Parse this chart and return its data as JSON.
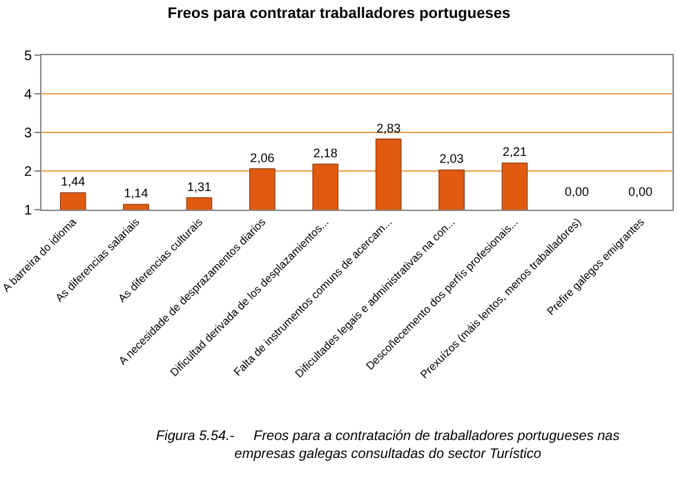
{
  "chart_data": {
    "type": "bar",
    "title": "Freos para contratar traballadores portugueses",
    "categories": [
      "A barreira do idioma",
      "As diferencias salariais",
      "As diferencias culturais",
      "A necesidade de desprazamentos diarios",
      "Dificultad derivada de los desplazamientos...",
      "Falta de instrumentos comuns de acercam...",
      "Dificultades legais e administrativas na con...",
      "Descoñecemento dos perfís profesionais...",
      "Prexuízos (máis lentos, menos traballadores)",
      "Prefire galegos emigrantes"
    ],
    "values": [
      1.44,
      1.14,
      1.31,
      2.06,
      2.18,
      2.83,
      2.03,
      2.21,
      null,
      null
    ],
    "value_labels": [
      "1,44",
      "1,14",
      "1,31",
      "2,06",
      "2,18",
      "2,83",
      "2,03",
      "2,21",
      "0,00",
      "0,00"
    ],
    "color": "#e05a10",
    "ylim": [
      1,
      5
    ],
    "yticks": [
      1,
      2,
      3,
      4,
      5
    ],
    "grid": "y",
    "annotations": [
      "Figura 5.54.-     Freos para a contratación de traballadores portugueses nas empresas galegas consultadas do sector Turístico"
    ]
  }
}
